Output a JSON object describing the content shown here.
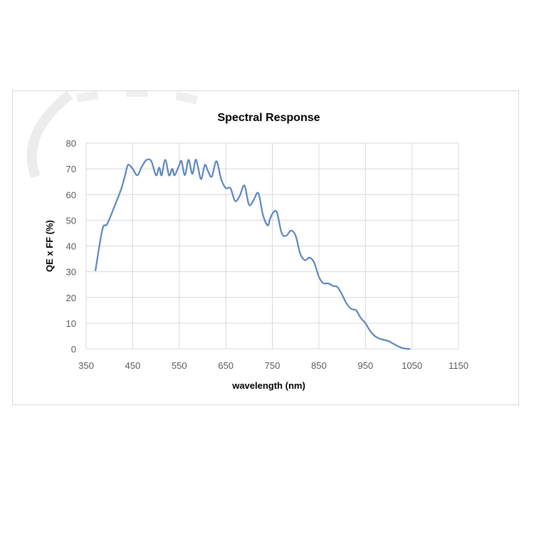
{
  "chart_data": {
    "type": "line",
    "title": "Spectral Response",
    "xlabel": "wavelength (nm)",
    "ylabel": "QE x FF (%)",
    "xlim": [
      350,
      1150
    ],
    "ylim": [
      0,
      80
    ],
    "x_ticks": [
      "350",
      "450",
      "550",
      "650",
      "750",
      "850",
      "950",
      "1050",
      "1150"
    ],
    "y_ticks": [
      "0",
      "10",
      "20",
      "30",
      "40",
      "50",
      "60",
      "70",
      "80"
    ],
    "grid": true,
    "legend": "none",
    "line_color": "#5b86c0",
    "series": [
      {
        "x": [
          370,
          385,
          395,
          410,
          425,
          433,
          440,
          450,
          460,
          470,
          480,
          490,
          500,
          507,
          512,
          520,
          528,
          535,
          540,
          550,
          555,
          562,
          570,
          578,
          585,
          590,
          597,
          605,
          612,
          620,
          630,
          640,
          650,
          660,
          670,
          680,
          690,
          700,
          710,
          720,
          730,
          740,
          745,
          752,
          760,
          770,
          780,
          790,
          800,
          810,
          820,
          830,
          840,
          850,
          860,
          870,
          880,
          890,
          900,
          910,
          920,
          930,
          940,
          950,
          960,
          970,
          980,
          990,
          1000,
          1010,
          1020,
          1030,
          1040,
          1045
        ],
        "y": [
          30.5,
          46.5,
          48.5,
          55,
          62,
          67,
          71.5,
          70,
          67.5,
          71,
          73.5,
          73,
          67.5,
          70.5,
          67.5,
          73.5,
          67.5,
          70,
          67.5,
          71.5,
          73,
          67.5,
          73.5,
          68,
          73.5,
          71,
          66,
          71.5,
          69,
          67,
          73,
          66,
          62.5,
          62.5,
          57.5,
          59.5,
          63.5,
          56,
          58,
          60.5,
          52,
          48,
          50.5,
          53,
          53,
          45,
          44,
          46,
          44,
          37,
          34.5,
          35.5,
          33.5,
          28,
          25.5,
          25.5,
          24.5,
          24,
          21,
          17.5,
          15.5,
          15,
          12,
          10,
          7,
          5,
          4,
          3.5,
          3,
          2,
          1,
          0.3,
          0,
          0
        ]
      }
    ]
  }
}
